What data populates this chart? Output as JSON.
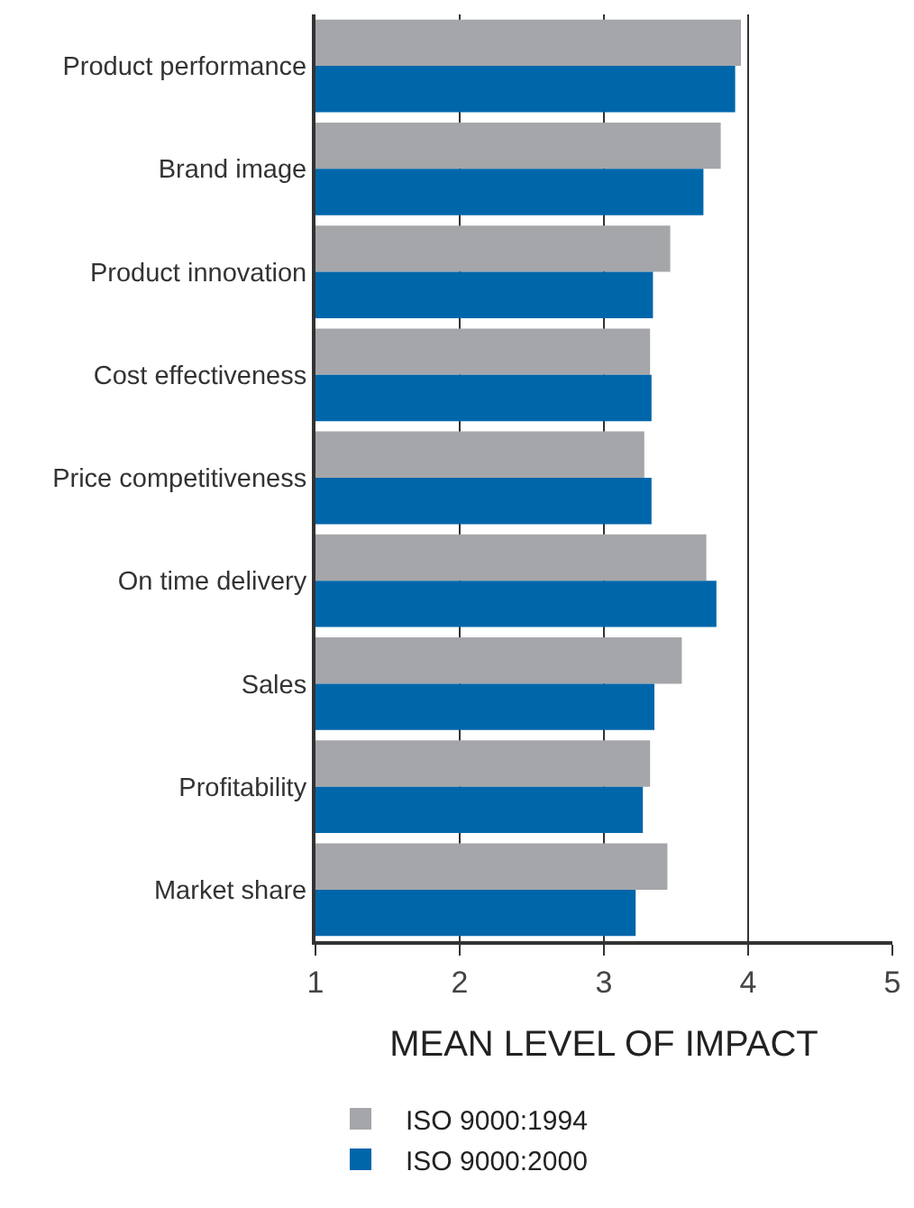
{
  "chart_data": {
    "type": "bar",
    "orientation": "horizontal",
    "xlabel": "MEAN LEVEL OF IMPACT",
    "categories": [
      "Product performance",
      "Brand image",
      "Product innovation",
      "Cost effectiveness",
      "Price competitiveness",
      "On time delivery",
      "Sales",
      "Profitability",
      "Market share"
    ],
    "series": [
      {
        "name": "ISO 9000:1994",
        "color": "#a5a6aa",
        "values": [
          3.95,
          3.81,
          3.46,
          3.32,
          3.28,
          3.71,
          3.54,
          3.32,
          3.44
        ]
      },
      {
        "name": "ISO 9000:2000",
        "color": "#0066aa",
        "values": [
          3.91,
          3.69,
          3.34,
          3.33,
          3.33,
          3.78,
          3.35,
          3.27,
          3.22
        ]
      }
    ],
    "xlim": [
      1,
      5
    ],
    "xticks": [
      1,
      2,
      3,
      4,
      5
    ],
    "grid": "x",
    "legend": "bottom"
  }
}
